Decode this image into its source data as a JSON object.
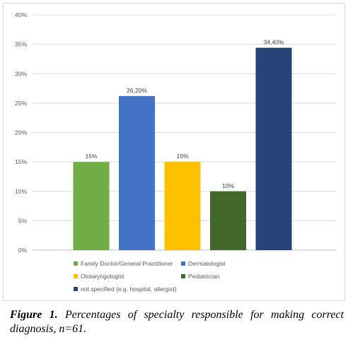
{
  "chart_data": {
    "type": "bar",
    "categories": [
      "Family Doctor/General Practitioner",
      "Dermatologist",
      "Otolaryngologist",
      "Pediatrician",
      "not specified (e.g. hospital, allergist)"
    ],
    "values": [
      15,
      26.2,
      15,
      10,
      34.4
    ],
    "data_labels": [
      "15%",
      "26,20%",
      "15%",
      "10%",
      "34,40%"
    ],
    "colors": [
      "#70ad47",
      "#4472c4",
      "#ffc000",
      "#43682b",
      "#264478"
    ],
    "yticks": [
      "0%",
      "5%",
      "10%",
      "15%",
      "20%",
      "25%",
      "30%",
      "35%",
      "40%"
    ],
    "ylim": [
      0,
      40
    ],
    "grid": true,
    "legend_position": "bottom",
    "title": "",
    "xlabel": "",
    "ylabel": ""
  },
  "caption": {
    "label": "Figure 1.",
    "text": "Percentages of specialty responsible for making correct diagnosis, n=61."
  }
}
